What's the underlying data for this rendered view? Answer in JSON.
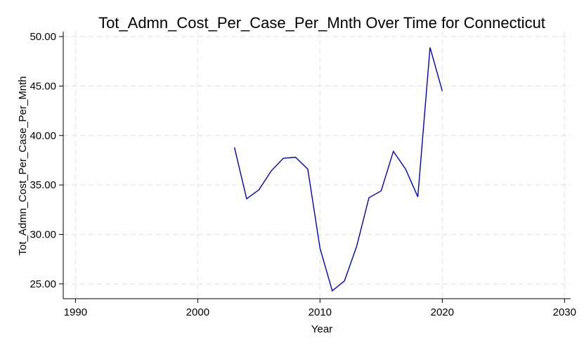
{
  "chart_data": {
    "type": "line",
    "title": "Tot_Admn_Cost_Per_Case_Per_Mnth Over Time for Connecticut",
    "xlabel": "Year",
    "ylabel": "Tot_Admn_Cost_Per_Case_Per_Mnth",
    "xlim": [
      1989,
      2030.5
    ],
    "ylim": [
      23.5,
      50.5
    ],
    "xticks": [
      1990,
      2000,
      2010,
      2020,
      2030
    ],
    "xtick_labels": [
      "1990",
      "2000",
      "2010",
      "2020",
      "2030"
    ],
    "yticks": [
      25,
      30,
      35,
      40,
      45,
      50
    ],
    "ytick_labels": [
      "25.00",
      "30.00",
      "35.00",
      "40.00",
      "45.00",
      "50.00"
    ],
    "grid": true,
    "legend": "none",
    "series": [
      {
        "color": "#0000cc",
        "x": [
          2003,
          2004,
          2005,
          2006,
          2007,
          2008,
          2009,
          2010,
          2011,
          2012,
          2013,
          2014,
          2015,
          2016,
          2017,
          2018,
          2019,
          2020
        ],
        "y": [
          38.8,
          33.6,
          34.5,
          36.4,
          37.7,
          37.8,
          36.6,
          28.6,
          24.3,
          25.3,
          28.8,
          33.7,
          34.4,
          38.4,
          36.6,
          33.8,
          48.9,
          44.5
        ]
      }
    ]
  }
}
